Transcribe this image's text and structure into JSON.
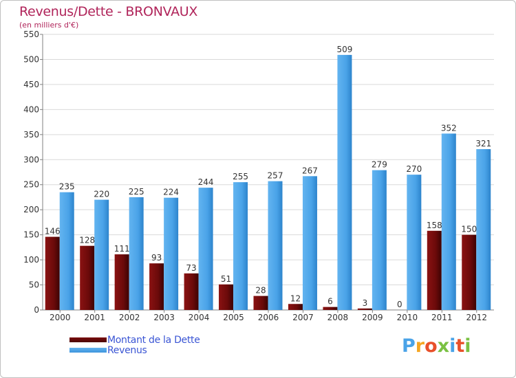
{
  "header": {
    "title": "Revenus/Dette - BRONVAUX",
    "subtitle": "(en milliers d'€)"
  },
  "legend": {
    "items": [
      {
        "label": "Montant de la Dette",
        "color": "#6b0a0a"
      },
      {
        "label": "Revenus",
        "color": "#4aa3e8"
      }
    ]
  },
  "logo": {
    "text": "Proxiti",
    "colors": [
      "#4aa3e8",
      "#f5a623",
      "#e8502a",
      "#7ac143",
      "#4aa3e8",
      "#e8502a",
      "#7ac143"
    ]
  },
  "chart_data": {
    "type": "bar",
    "title": "Revenus/Dette - BRONVAUX",
    "ylabel": "(en milliers d'€)",
    "xlabel": "",
    "categories": [
      "2000",
      "2001",
      "2002",
      "2003",
      "2004",
      "2005",
      "2006",
      "2007",
      "2008",
      "2009",
      "2010",
      "2011",
      "2012"
    ],
    "series": [
      {
        "name": "Montant de la Dette",
        "color": "#6b0a0a",
        "values": [
          146,
          128,
          111,
          93,
          73,
          51,
          28,
          12,
          6,
          3,
          0,
          158,
          150
        ]
      },
      {
        "name": "Revenus",
        "color": "#4aa3e8",
        "values": [
          235,
          220,
          225,
          224,
          244,
          255,
          257,
          267,
          509,
          279,
          270,
          352,
          321
        ]
      }
    ],
    "ylim": [
      0,
      550
    ],
    "yticks": [
      0,
      50,
      100,
      150,
      200,
      250,
      300,
      350,
      400,
      450,
      500,
      550
    ],
    "grid": true,
    "legend_position": "bottom-left"
  }
}
